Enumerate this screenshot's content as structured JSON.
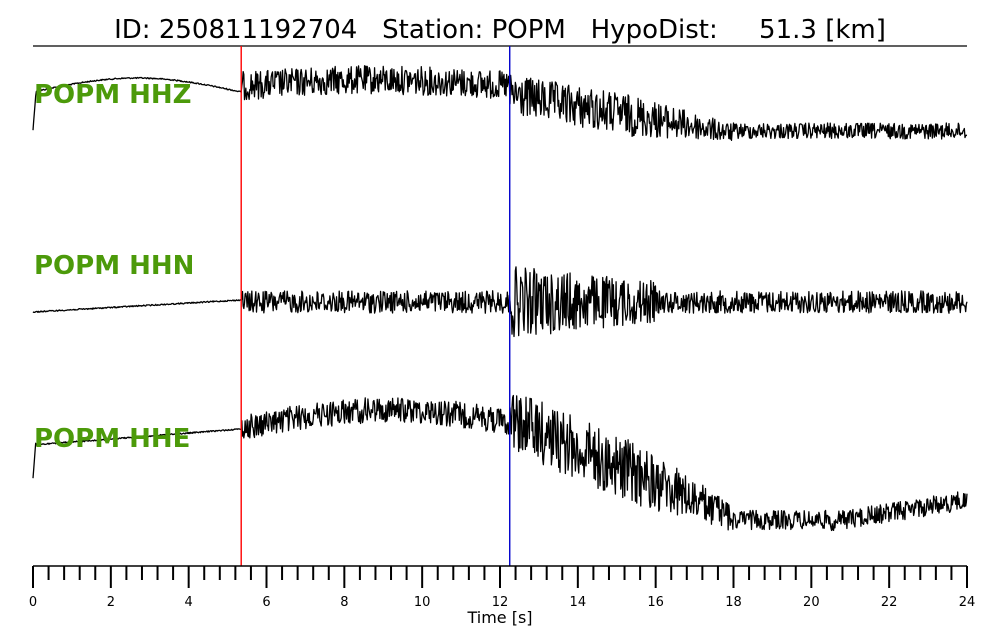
{
  "chart_data": {
    "type": "line",
    "title": "ID: 250811192704   Station: POPM   HypoDist:     51.3 [km]",
    "xlabel": "Time [s]",
    "xlim": [
      0,
      24
    ],
    "x_major_ticks": [
      0,
      2,
      4,
      6,
      8,
      10,
      12,
      14,
      16,
      18,
      20,
      22,
      24
    ],
    "x_minor_tick_step": 0.4,
    "x_tick_labels": [
      "0",
      "2",
      "4",
      "6",
      "8",
      "10",
      "12",
      "14",
      "16",
      "18",
      "20",
      "22",
      "24"
    ],
    "series": [
      {
        "name": "POPM HHZ",
        "color": "#000000"
      },
      {
        "name": "POPM HHN",
        "color": "#000000"
      },
      {
        "name": "POPM HHE",
        "color": "#000000"
      }
    ],
    "label_color": "#4c9a0a",
    "picks": [
      {
        "phase": "P",
        "time": 5.35,
        "color": "#ff0000"
      },
      {
        "phase": "S",
        "time": 12.25,
        "color": "#0000cc"
      }
    ],
    "grid": false
  }
}
